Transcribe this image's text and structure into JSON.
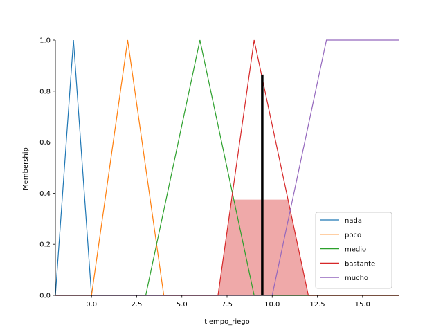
{
  "chart_data": {
    "type": "line",
    "xlabel": "tiempo_riego",
    "ylabel": "Membership",
    "xlim": [
      -2,
      17
    ],
    "ylim": [
      0,
      1.0
    ],
    "x_ticks": [
      {
        "value": 0.0,
        "label": "0.0"
      },
      {
        "value": 2.5,
        "label": "2.5"
      },
      {
        "value": 5.0,
        "label": "5.0"
      },
      {
        "value": 7.5,
        "label": "7.5"
      },
      {
        "value": 10.0,
        "label": "10.0"
      },
      {
        "value": 12.5,
        "label": "12.5"
      },
      {
        "value": 15.0,
        "label": "15.0"
      }
    ],
    "y_ticks": [
      {
        "value": 0.0,
        "label": "0.0"
      },
      {
        "value": 0.2,
        "label": "0.2"
      },
      {
        "value": 0.4,
        "label": "0.4"
      },
      {
        "value": 0.6,
        "label": "0.6"
      },
      {
        "value": 0.8,
        "label": "0.8"
      },
      {
        "value": 1.0,
        "label": "1.0"
      }
    ],
    "series": [
      {
        "name": "nada",
        "color": "#1f77b4",
        "x": [
          -2,
          -1,
          0,
          17
        ],
        "y": [
          0,
          1,
          0,
          0
        ]
      },
      {
        "name": "poco",
        "color": "#ff7f0e",
        "x": [
          -2,
          0,
          2,
          4,
          17
        ],
        "y": [
          0,
          0,
          1,
          0,
          0
        ]
      },
      {
        "name": "medio",
        "color": "#2ca02c",
        "x": [
          -2,
          3,
          6,
          9,
          17
        ],
        "y": [
          0,
          0,
          1,
          0,
          0
        ]
      },
      {
        "name": "bastante",
        "color": "#d62728",
        "x": [
          -2,
          7,
          9,
          12,
          17
        ],
        "y": [
          0,
          0,
          1,
          0,
          0
        ]
      },
      {
        "name": "mucho",
        "color": "#9467bd",
        "x": [
          -2,
          10,
          13,
          17
        ],
        "y": [
          0,
          0,
          1,
          1
        ]
      }
    ],
    "activation": {
      "color": "#d62728",
      "x": [
        7,
        7.75,
        10.875,
        12
      ],
      "y": [
        0,
        0.375,
        0.375,
        0
      ]
    },
    "crisp_output": {
      "x": 9.45,
      "height": 0.865,
      "color": "#000000"
    },
    "legend": {
      "placement": "lower-right"
    },
    "grid": false
  }
}
